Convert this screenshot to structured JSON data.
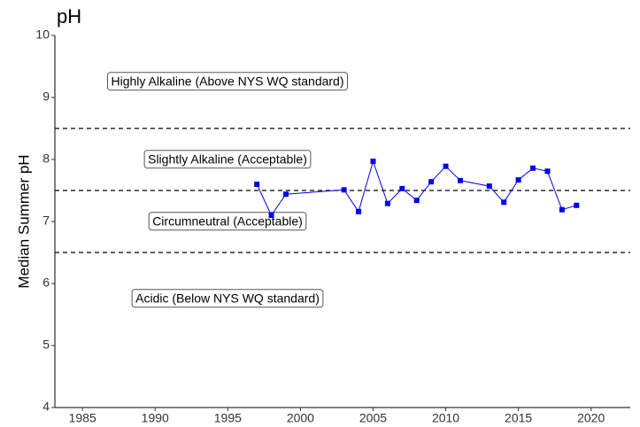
{
  "chart_data": {
    "type": "line",
    "title": "pH",
    "y_label": "Median Summer pH",
    "x": [
      1997,
      1998,
      1999,
      2003,
      2004,
      2005,
      2006,
      2007,
      2008,
      2009,
      2010,
      2011,
      2013,
      2014,
      2015,
      2016,
      2017,
      2018,
      2019
    ],
    "series": [
      {
        "color": "#0000ee",
        "values": [
          7.6,
          7.1,
          7.44,
          7.51,
          7.16,
          7.97,
          7.29,
          7.53,
          7.34,
          7.64,
          7.89,
          7.66,
          7.57,
          7.31,
          7.67,
          7.86,
          7.81,
          7.19,
          7.26
        ]
      }
    ],
    "xlim": [
      1983.1,
      2022.7
    ],
    "xticks": [
      1985,
      1990,
      1995,
      2000,
      2005,
      2010,
      2015,
      2020
    ],
    "ylim": [
      4,
      10
    ],
    "yticks": [
      4,
      5,
      6,
      7,
      8,
      9,
      10
    ],
    "reference_lines": [
      8.5,
      7.5,
      6.5
    ],
    "annotations": [
      "Highly Alkaline (Above NYS WQ standard)",
      "Slightly Alkaline (Acceptable)",
      "Circumneutral (Acceptable)",
      "Acidic (Below NYS WQ standard)"
    ]
  }
}
